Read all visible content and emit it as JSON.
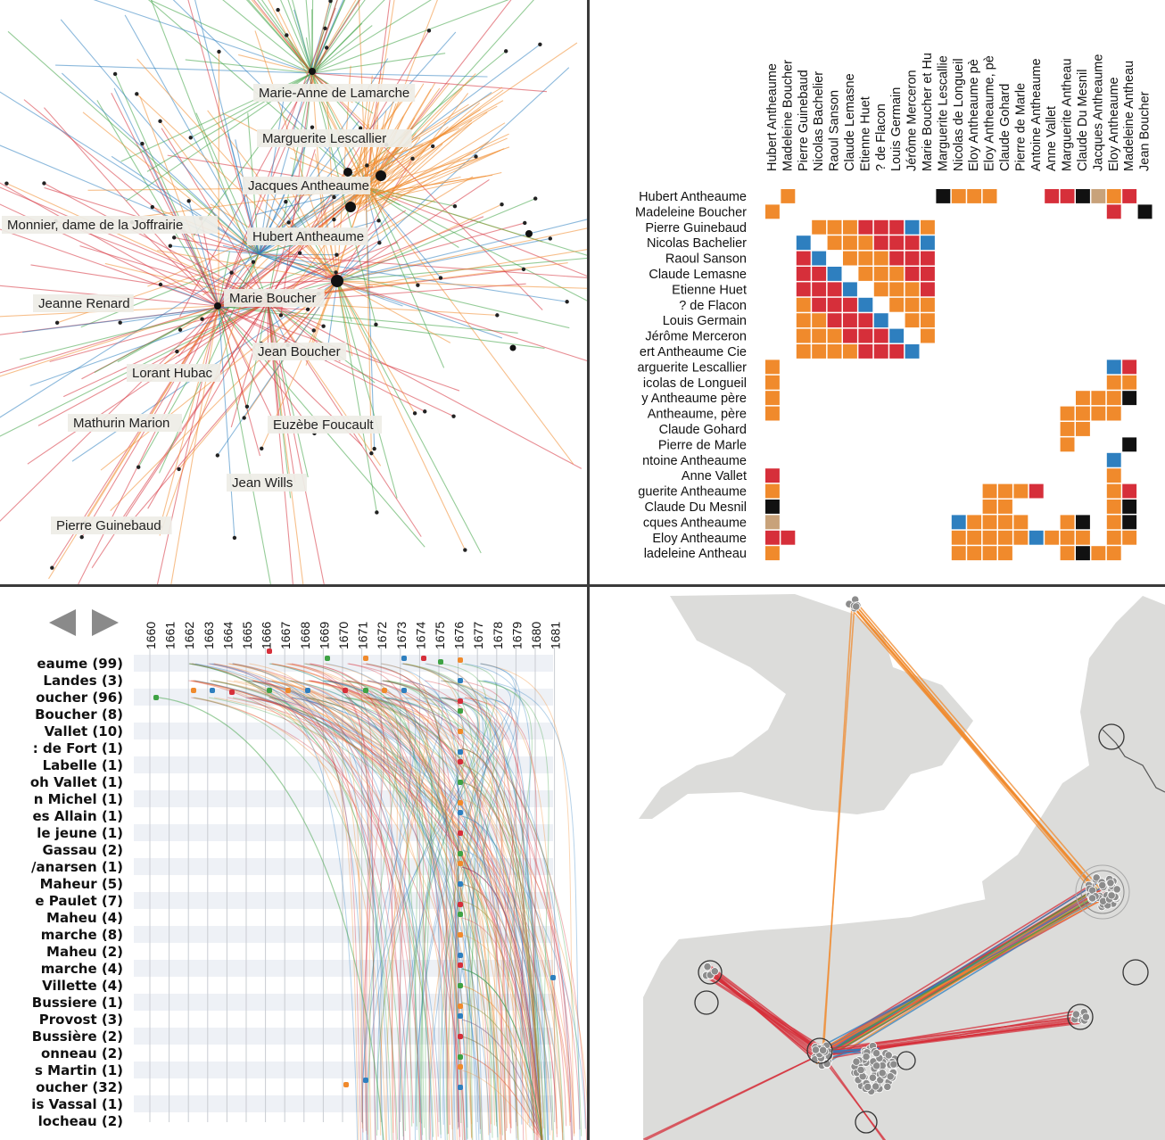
{
  "colors": {
    "orange": "#f08a2c",
    "blue": "#2e7fbf",
    "red": "#d62f3a",
    "green": "#3ea244",
    "black": "#111111",
    "tan": "#c8a27a",
    "gray": "#c4c4c4",
    "land": "#dcdcda",
    "divider": "#3a3a3a"
  },
  "network": {
    "labels": [
      "Marie-Anne de Lamarche",
      "Marguerite Lescallier",
      "Jacques Antheaume",
      "Monnier, dame de la Joffrairie",
      "Hubert Antheaume",
      "Jeanne Renard",
      "Marie Boucher",
      "Jean Boucher",
      "Lorant Hubac",
      "Mathurin Marion",
      "Euzèbe Foucault",
      "Jean Wills",
      "Pierre Guinebaud"
    ]
  },
  "matrix": {
    "column_labels": [
      "Hubert Antheaume",
      "Madeleine Boucher",
      "Pierre Guinebaud",
      "Nicolas Bachelier",
      "Raoul Sanson",
      "Claude Lemasne",
      "Etienne Huet",
      "? de Flacon",
      "Louis Germain",
      "Jérôme Merceron",
      "Marie Boucher et Hu",
      "Marguerite Lescallie",
      "Nicolas de Longueil",
      "Eloy Antheaume pè",
      "Eloy Antheaume, pè",
      "Claude Gohard",
      "Pierre de Marle",
      "Antoine Antheaume",
      "Anne Vallet",
      "Marguerite Antheau",
      "Claude Du Mesnil",
      "Jacques Antheaume",
      "Eloy Antheaume",
      "Madeleine Antheau",
      "Jean Boucher"
    ],
    "row_labels": [
      "Hubert Antheaume",
      "Madeleine Boucher",
      "Pierre Guinebaud",
      "Nicolas Bachelier",
      "Raoul Sanson",
      "Claude Lemasne",
      "Etienne Huet",
      "? de Flacon",
      "Louis Germain",
      "Jérôme Merceron",
      "ert Antheaume Cie",
      "arguerite Lescallier",
      "icolas de Longueil",
      "y Antheaume père",
      "Antheaume, père",
      "Claude Gohard",
      "Pierre de Marle",
      "ntoine Antheaume",
      "Anne Vallet",
      "guerite Antheaume",
      "Claude Du Mesnil",
      "cques Antheaume",
      "Eloy Antheaume",
      "ladeleine Antheau"
    ]
  },
  "timeline": {
    "years": [
      "1660",
      "1661",
      "1662",
      "1663",
      "1664",
      "1665",
      "1666",
      "1667",
      "1668",
      "1669",
      "1670",
      "1671",
      "1672",
      "1673",
      "1674",
      "1675",
      "1676",
      "1677",
      "1678",
      "1679",
      "1680",
      "1681"
    ],
    "rows": [
      "eaume (99)",
      "Landes (3)",
      "oucher (96)",
      "Boucher (8)",
      "Vallet (10)",
      ": de Fort (1)",
      "Labelle (1)",
      "oh Vallet (1)",
      "n Michel (1)",
      "es Allain (1)",
      "le jeune (1)",
      "Gassau (2)",
      "/anarsen (1)",
      "Maheur (5)",
      "e Paulet (7)",
      "Maheu (4)",
      "marche (8)",
      "Maheu (2)",
      "marche (4)",
      "Villette (4)",
      "Bussiere (1)",
      "Provost (3)",
      "Bussière (2)",
      "onneau (2)",
      "s Martin (1)",
      "oucher (32)",
      "is Vassal (1)",
      "locheau (2)"
    ]
  },
  "map": {
    "icons": [
      "cluster-node-icon"
    ]
  }
}
